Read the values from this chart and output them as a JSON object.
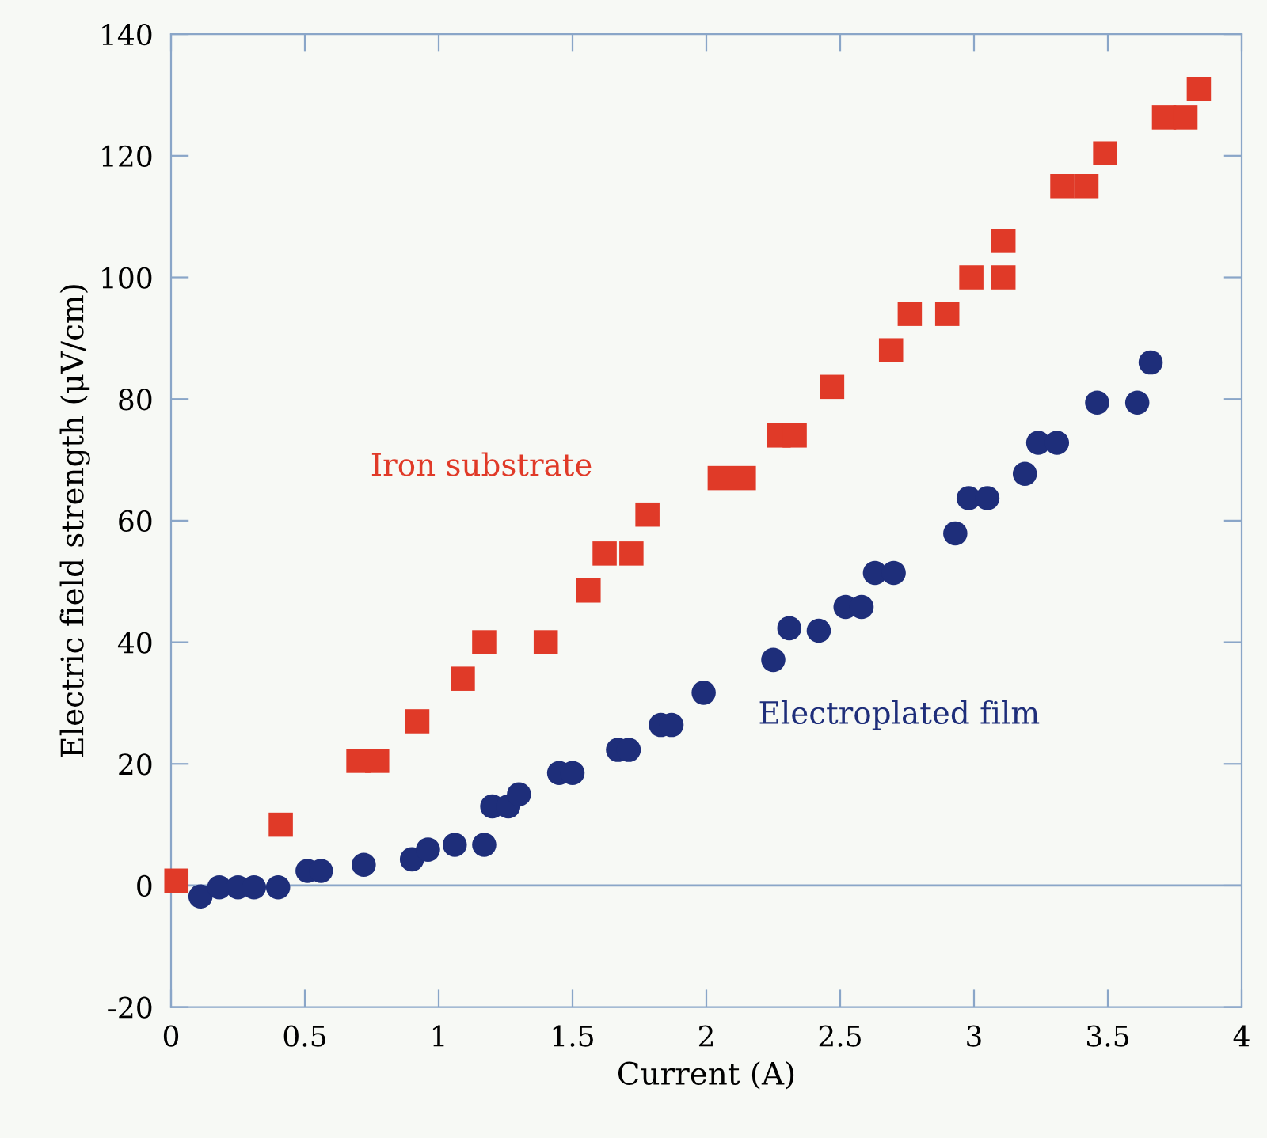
{
  "chart_data": {
    "type": "scatter",
    "xlabel": "Current (A)",
    "ylabel": "Electric field strength (μV/cm)",
    "xlim": [
      0,
      4
    ],
    "ylim": [
      -20,
      140
    ],
    "xticks": [
      0,
      0.5,
      1,
      1.5,
      2,
      2.5,
      3,
      3.5,
      4
    ],
    "yticks": [
      -20,
      0,
      20,
      40,
      60,
      80,
      100,
      120,
      140
    ],
    "grid": false,
    "legend": false,
    "ref_lines": [
      {
        "axis": "y",
        "value": 0,
        "color": "#8aa6c8"
      }
    ],
    "series": [
      {
        "name": "Iron substrate",
        "color": "#e03a28",
        "marker": "square",
        "x": [
          0.02,
          0.41,
          0.7,
          0.77,
          0.92,
          1.09,
          1.17,
          1.4,
          1.56,
          1.62,
          1.72,
          1.78,
          2.05,
          2.14,
          2.27,
          2.33,
          2.47,
          2.69,
          2.76,
          2.9,
          2.99,
          3.11,
          3.11,
          3.33,
          3.42,
          3.49,
          3.71,
          3.79,
          3.84
        ],
        "values": [
          0.8,
          10,
          20.5,
          20.5,
          27,
          34,
          40,
          40,
          48.5,
          54.6,
          54.6,
          61,
          67,
          67,
          74,
          74,
          82,
          88,
          94,
          94,
          100,
          100,
          106,
          115,
          115,
          120.4,
          126.3,
          126.3,
          131
        ]
      },
      {
        "name": "Electroplated film",
        "color": "#1e2e7a",
        "marker": "circle",
        "x": [
          0.11,
          0.18,
          0.25,
          0.31,
          0.4,
          0.51,
          0.56,
          0.72,
          0.9,
          0.96,
          1.06,
          1.17,
          1.2,
          1.26,
          1.3,
          1.45,
          1.5,
          1.67,
          1.71,
          1.83,
          1.87,
          1.99,
          2.25,
          2.31,
          2.42,
          2.52,
          2.58,
          2.63,
          2.7,
          2.93,
          2.98,
          3.05,
          3.19,
          3.24,
          3.31,
          3.46,
          3.61,
          3.66
        ],
        "values": [
          -1.8,
          -0.3,
          -0.3,
          -0.3,
          -0.3,
          2.4,
          2.4,
          3.4,
          4.3,
          5.9,
          6.7,
          6.7,
          13,
          13,
          15,
          18.5,
          18.5,
          22.3,
          22.3,
          26.4,
          26.4,
          31.7,
          37.1,
          42.3,
          41.9,
          45.8,
          45.8,
          51.4,
          51.4,
          57.9,
          63.7,
          63.7,
          67.7,
          72.8,
          72.8,
          79.4,
          79.4,
          86
        ]
      }
    ]
  }
}
